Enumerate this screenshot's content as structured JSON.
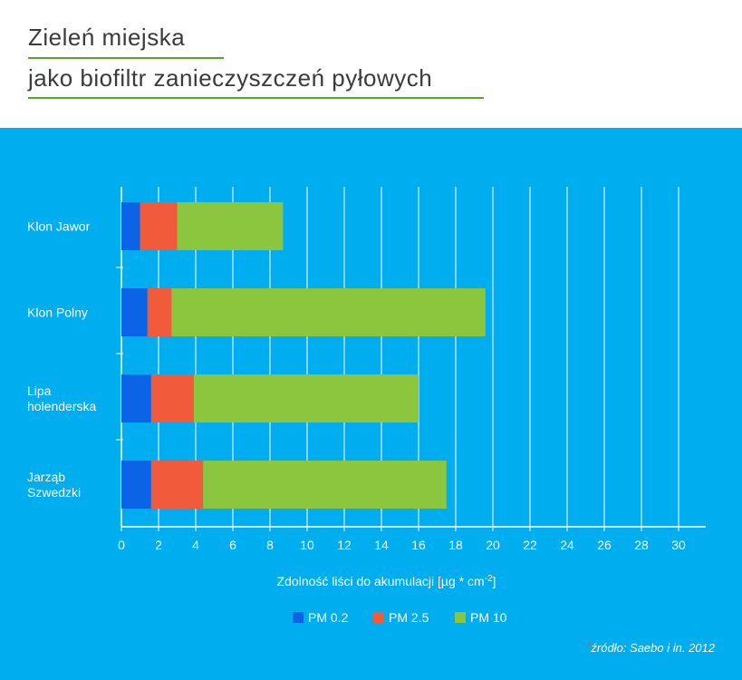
{
  "header": {
    "title_line1": "Zieleń miejska",
    "title_line2": "jako biofiltr zanieczyszczeń pyłowych"
  },
  "source": {
    "star": "*",
    "text": "źródło: Saebo i in. 2012"
  },
  "colors": {
    "panel_bg": "#00aeef",
    "accent_rule": "#5aa52a",
    "pm02": "#0b63e5",
    "pm25": "#f15a3a",
    "pm10": "#8cc63f"
  },
  "chart_data": {
    "type": "bar",
    "orientation": "horizontal",
    "stacked": true,
    "categories": [
      "Klon Jawor",
      "Klon Polny",
      "Lipa\nholenderska",
      "Jarząb\nSzwedzki"
    ],
    "series": [
      {
        "name": "PM 0.2",
        "color": "#0b63e5",
        "values": [
          1.0,
          1.4,
          1.6,
          1.6
        ]
      },
      {
        "name": "PM 2.5",
        "color": "#f15a3a",
        "values": [
          2.0,
          1.3,
          2.3,
          2.8
        ]
      },
      {
        "name": "PM 10",
        "color": "#8cc63f",
        "values": [
          5.7,
          16.9,
          12.1,
          13.1
        ]
      }
    ],
    "xlim": [
      0,
      31
    ],
    "xticks": [
      0,
      2,
      4,
      6,
      8,
      10,
      12,
      14,
      16,
      18,
      20,
      22,
      24,
      26,
      28,
      30
    ],
    "xlabel": "Zdolność liści do akumulacji [µg * cm",
    "xlabel_sup": "-2",
    "xlabel_end": "]",
    "grid": true,
    "legend_position": "bottom-center"
  }
}
